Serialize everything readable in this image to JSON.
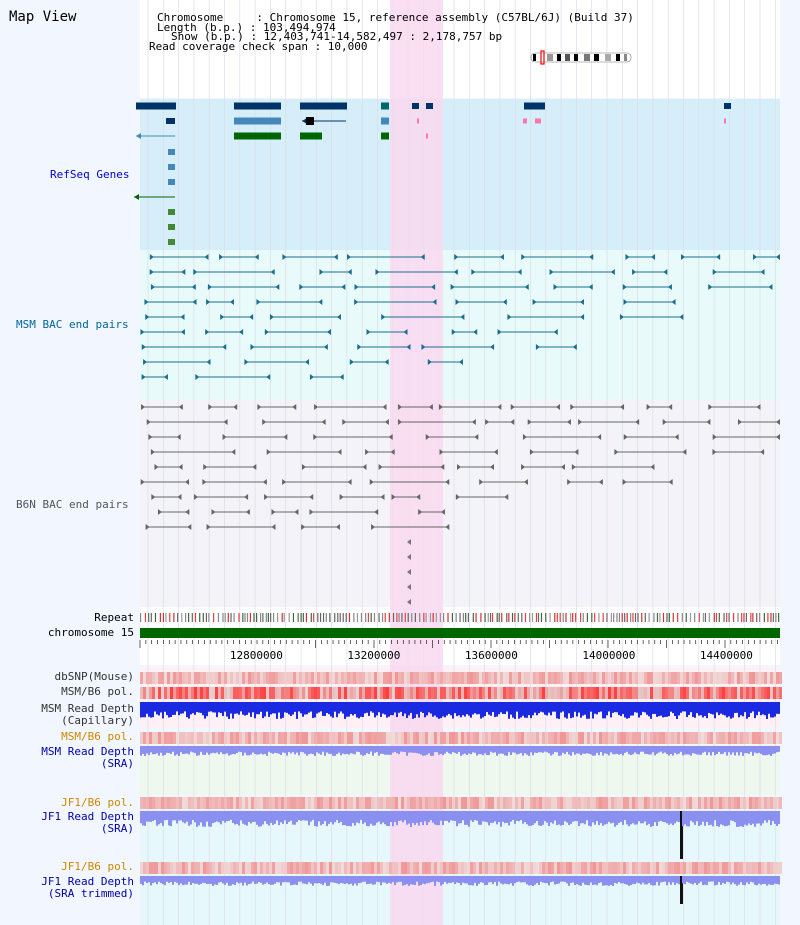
{
  "view_title": "Map View",
  "header": {
    "chromosome_line": "Chromosome     : Chromosome 15, reference assembly (C57BL/6J) (Build 37)",
    "length_line": "Length (b.p.) : 103,494,974",
    "show_line": "Show (b.p.) : 12,403,741-14,582,497 : 2,178,757 bp",
    "coverage_line": "Read coverage check span : 10,000"
  },
  "region": {
    "start": 12403741,
    "end": 14582497,
    "highlight_start": 13255000,
    "highlight_end": 13435000
  },
  "tracks": {
    "refseq": "RefSeq Genes",
    "msm_bac": "MSM BAC end pairs",
    "b6n_bac": "B6N BAC end pairs",
    "repeat": "Repeat",
    "chromosome": "chromosome 15",
    "dbsnp": "dbSNP(Mouse)",
    "msm_b6_pol": "MSM/B6 pol.",
    "msm_depth_cap_1": "MSM Read Depth",
    "msm_depth_cap_2": "(Capillary)",
    "msm_b6_pol_2": "MSM/B6 pol.",
    "msm_depth_sra_1": "MSM Read Depth",
    "msm_depth_sra_2": "(SRA)",
    "jf1_b6_pol": "JF1/B6 pol.",
    "jf1_depth_sra_1": "JF1 Read Depth",
    "jf1_depth_sra_2": "(SRA)",
    "jf1_b6_pol_2": "JF1/B6 pol.",
    "jf1_depth_trim_1": "JF1 Read Depth",
    "jf1_depth_trim_2": "(SRA trimmed)"
  },
  "axis_ticks": [
    12800000,
    13200000,
    13600000,
    14000000,
    14400000
  ],
  "colors": {
    "refseq_label": "#0000cc",
    "msm_label": "#006699",
    "b6n_label": "#555555",
    "pol_label": "#cc8800",
    "depth_label": "#0000aa",
    "highlight": "#f9d8f0"
  }
}
